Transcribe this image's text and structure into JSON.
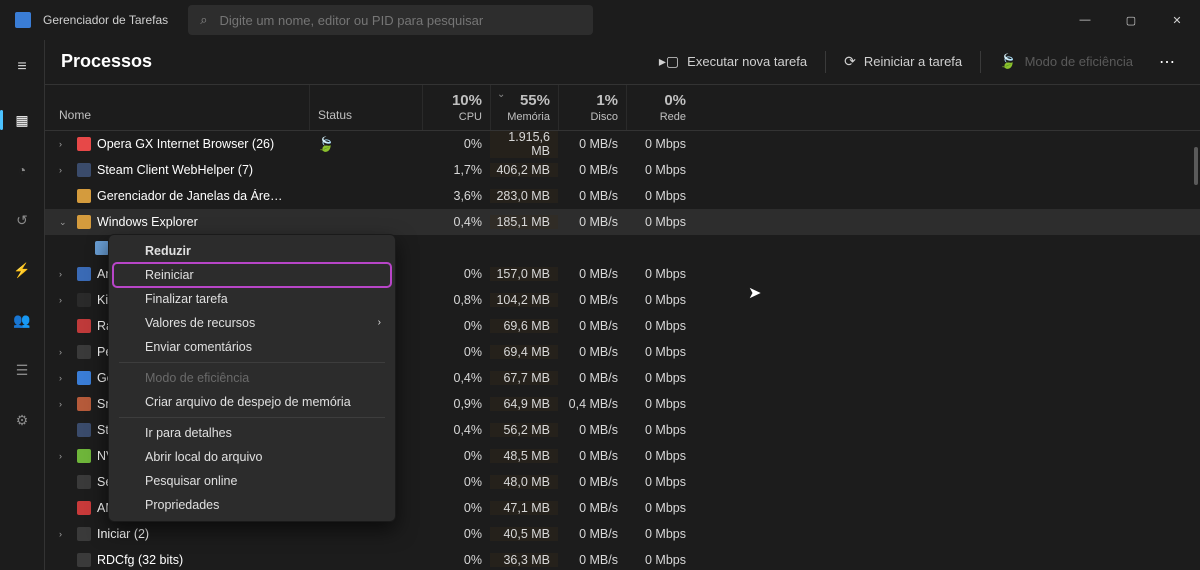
{
  "title": "Gerenciador de Tarefas",
  "search_placeholder": "Digite um nome, editor ou PID para pesquisar",
  "page_heading": "Processos",
  "actions": {
    "new_task": "Executar nova tarefa",
    "restart_task": "Reiniciar a tarefa",
    "efficiency": "Modo de eficiência"
  },
  "columns": {
    "name": "Nome",
    "status": "Status",
    "cpu_pct": "10%",
    "cpu_lbl": "CPU",
    "mem_pct": "55%",
    "mem_lbl": "Memória",
    "disk_pct": "1%",
    "disk_lbl": "Disco",
    "net_pct": "0%",
    "net_lbl": "Rede"
  },
  "rows": [
    {
      "exp": "›",
      "icon": "#e74848",
      "name": "Opera GX Internet Browser (26)",
      "leaf": true,
      "cpu": "0%",
      "mem": "1.915,6 MB",
      "disk": "0 MB/s",
      "net": "0 Mbps"
    },
    {
      "exp": "›",
      "icon": "#3a4b6b",
      "name": "Steam Client WebHelper (7)",
      "cpu": "1,7%",
      "mem": "406,2 MB",
      "disk": "0 MB/s",
      "net": "0 Mbps"
    },
    {
      "exp": "",
      "icon": "#d49b3d",
      "name": "Gerenciador de Janelas da Áre…",
      "cpu": "3,6%",
      "mem": "283,0 MB",
      "disk": "0 MB/s",
      "net": "0 Mbps"
    },
    {
      "exp": "⌄",
      "icon": "#d49b3d",
      "name": "Windows Explorer",
      "sel": true,
      "cpu": "0,4%",
      "mem": "185,1 MB",
      "disk": "0 MB/s",
      "net": "0 Mbps"
    },
    {
      "exp": "",
      "icon": "#6a9fd6",
      "name": "",
      "indent": true,
      "hidden_name": true,
      "cpu": "",
      "mem": "",
      "disk": "",
      "net": ""
    },
    {
      "exp": "›",
      "icon": "#3a6ab5",
      "name": "Ar",
      "cpu": "0%",
      "mem": "157,0 MB",
      "disk": "0 MB/s",
      "net": "0 Mbps"
    },
    {
      "exp": "›",
      "icon": "#2a2a2a",
      "name": "Ki",
      "cpu": "0,8%",
      "mem": "104,2 MB",
      "disk": "0 MB/s",
      "net": "0 Mbps"
    },
    {
      "exp": "",
      "icon": "#bf3a3a",
      "name": "Ra",
      "cpu": "0%",
      "mem": "69,6 MB",
      "disk": "0 MB/s",
      "net": "0 Mbps"
    },
    {
      "exp": "›",
      "icon": "#3a3a3a",
      "name": "Pe",
      "cpu": "0%",
      "mem": "69,4 MB",
      "disk": "0 MB/s",
      "net": "0 Mbps"
    },
    {
      "exp": "›",
      "icon": "#3a7dd6",
      "name": "Go",
      "cpu": "0,4%",
      "mem": "67,7 MB",
      "disk": "0 MB/s",
      "net": "0 Mbps"
    },
    {
      "exp": "›",
      "icon": "#b55a3a",
      "name": "Sn",
      "cpu": "0,9%",
      "mem": "64,9 MB",
      "disk": "0,4 MB/s",
      "net": "0 Mbps"
    },
    {
      "exp": "",
      "icon": "#3a4b6b",
      "name": "St",
      "cpu": "0,4%",
      "mem": "56,2 MB",
      "disk": "0 MB/s",
      "net": "0 Mbps"
    },
    {
      "exp": "›",
      "icon": "#6eb53a",
      "name": "NV",
      "cpu": "0%",
      "mem": "48,5 MB",
      "disk": "0 MB/s",
      "net": "0 Mbps"
    },
    {
      "exp": "",
      "icon": "#3a3a3a",
      "name": "Secure System",
      "cpu": "0%",
      "mem": "48,0 MB",
      "disk": "0 MB/s",
      "net": "0 Mbps"
    },
    {
      "exp": "",
      "icon": "#c83a3a",
      "name": "AMD Software: Host Applicati…",
      "cpu": "0%",
      "mem": "47,1 MB",
      "disk": "0 MB/s",
      "net": "0 Mbps"
    },
    {
      "exp": "›",
      "icon": "#3a3a3a",
      "name": "Iniciar (2)",
      "cpu": "0%",
      "mem": "40,5 MB",
      "disk": "0 MB/s",
      "net": "0 Mbps"
    },
    {
      "exp": "",
      "icon": "#3a3a3a",
      "name": "RDCfg (32 bits)",
      "cpu": "0%",
      "mem": "36,3 MB",
      "disk": "0 MB/s",
      "net": "0 Mbps"
    }
  ],
  "context_menu": [
    {
      "label": "Reduzir",
      "bold": true
    },
    {
      "label": "Reiniciar",
      "highlight": true
    },
    {
      "label": "Finalizar tarefa"
    },
    {
      "label": "Valores de recursos",
      "submenu": true
    },
    {
      "label": "Enviar comentários"
    },
    {
      "divider": true
    },
    {
      "label": "Modo de eficiência",
      "disabled": true
    },
    {
      "label": "Criar arquivo de despejo de memória"
    },
    {
      "divider": true
    },
    {
      "label": "Ir para detalhes"
    },
    {
      "label": "Abrir local do arquivo"
    },
    {
      "label": "Pesquisar online"
    },
    {
      "label": "Propriedades"
    }
  ]
}
